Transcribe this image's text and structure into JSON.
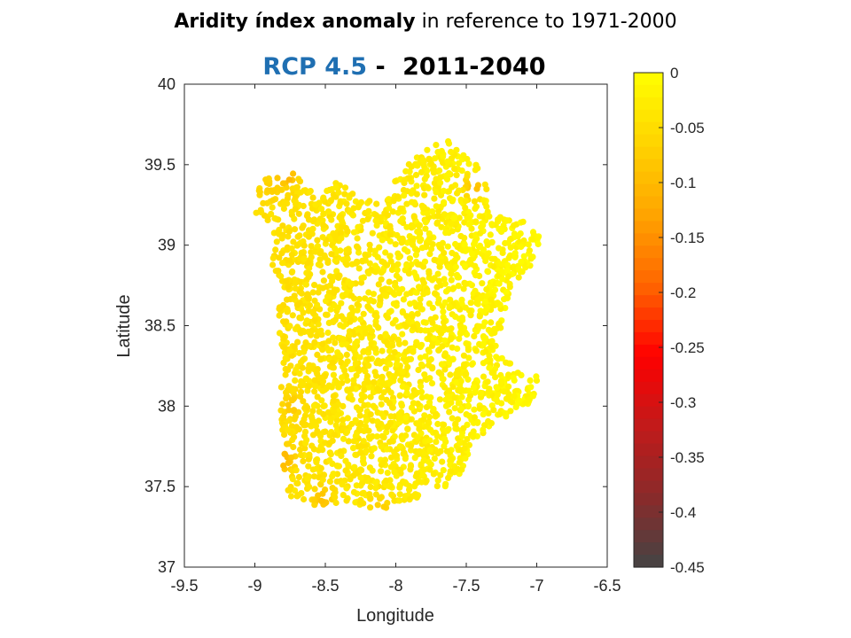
{
  "title": {
    "bold": "Aridity índex anomaly",
    "rest": "in reference to 1971-2000"
  },
  "subtitle": {
    "scenario": "RCP 4.5",
    "separator": "-",
    "period": "2011-2040"
  },
  "chart_data": {
    "type": "scatter",
    "xlabel": "Longitude",
    "ylabel": "Latitude",
    "xlim": [
      -9.5,
      -6.5
    ],
    "ylim": [
      37,
      40
    ],
    "xticks": [
      "-9.5",
      "-9",
      "-8.5",
      "-8",
      "-7.5",
      "-7",
      "-6.5"
    ],
    "yticks": [
      "37",
      "37.5",
      "38",
      "38.5",
      "39",
      "39.5",
      "40"
    ],
    "grid": false,
    "colorbar": {
      "range": [
        -0.45,
        0
      ],
      "ticks": [
        "0",
        "-0.05",
        "-0.1",
        "-0.15",
        "-0.2",
        "-0.25",
        "-0.3",
        "-0.35",
        "-0.4",
        "-0.45"
      ],
      "colormap": "hot",
      "colors_top_to_bottom": [
        "#ffff00",
        "#ffd400",
        "#ffa500",
        "#ff6600",
        "#ff0000",
        "#c21a1a",
        "#8a2a2a",
        "#444444"
      ]
    },
    "region_outline_lonlat": [
      [
        -9.0,
        39.3
      ],
      [
        -8.92,
        39.43
      ],
      [
        -8.75,
        39.46
      ],
      [
        -8.6,
        39.35
      ],
      [
        -8.4,
        39.4
      ],
      [
        -8.25,
        39.3
      ],
      [
        -8.1,
        39.28
      ],
      [
        -7.95,
        39.48
      ],
      [
        -7.8,
        39.58
      ],
      [
        -7.65,
        39.66
      ],
      [
        -7.52,
        39.58
      ],
      [
        -7.4,
        39.48
      ],
      [
        -7.35,
        39.35
      ],
      [
        -7.3,
        39.2
      ],
      [
        -7.1,
        39.15
      ],
      [
        -6.96,
        39.05
      ],
      [
        -7.05,
        38.85
      ],
      [
        -7.2,
        38.7
      ],
      [
        -7.25,
        38.5
      ],
      [
        -7.3,
        38.35
      ],
      [
        -7.1,
        38.2
      ],
      [
        -6.96,
        38.2
      ],
      [
        -7.05,
        38.0
      ],
      [
        -7.3,
        37.9
      ],
      [
        -7.45,
        37.75
      ],
      [
        -7.55,
        37.55
      ],
      [
        -7.75,
        37.45
      ],
      [
        -8.0,
        37.4
      ],
      [
        -8.15,
        37.33
      ],
      [
        -8.3,
        37.4
      ],
      [
        -8.55,
        37.38
      ],
      [
        -8.75,
        37.42
      ],
      [
        -8.81,
        37.6
      ],
      [
        -8.82,
        37.85
      ],
      [
        -8.82,
        38.05
      ],
      [
        -8.8,
        38.35
      ],
      [
        -8.86,
        38.5
      ],
      [
        -8.8,
        38.75
      ],
      [
        -8.9,
        38.9
      ],
      [
        -8.85,
        39.05
      ],
      [
        -8.9,
        39.15
      ],
      [
        -9.0,
        39.2
      ]
    ],
    "hotspots_lonlat_value": [
      [
        -8.78,
        39.44,
        -0.12
      ],
      [
        -7.45,
        39.36,
        -0.1
      ],
      [
        -8.8,
        37.67,
        -0.11
      ],
      [
        -8.74,
        38.0,
        -0.08
      ],
      [
        -8.52,
        37.42,
        -0.09
      ],
      [
        -8.1,
        37.38,
        -0.07
      ],
      [
        -8.88,
        39.36,
        -0.07
      ]
    ],
    "base_value_range": [
      -0.07,
      -0.01
    ]
  }
}
